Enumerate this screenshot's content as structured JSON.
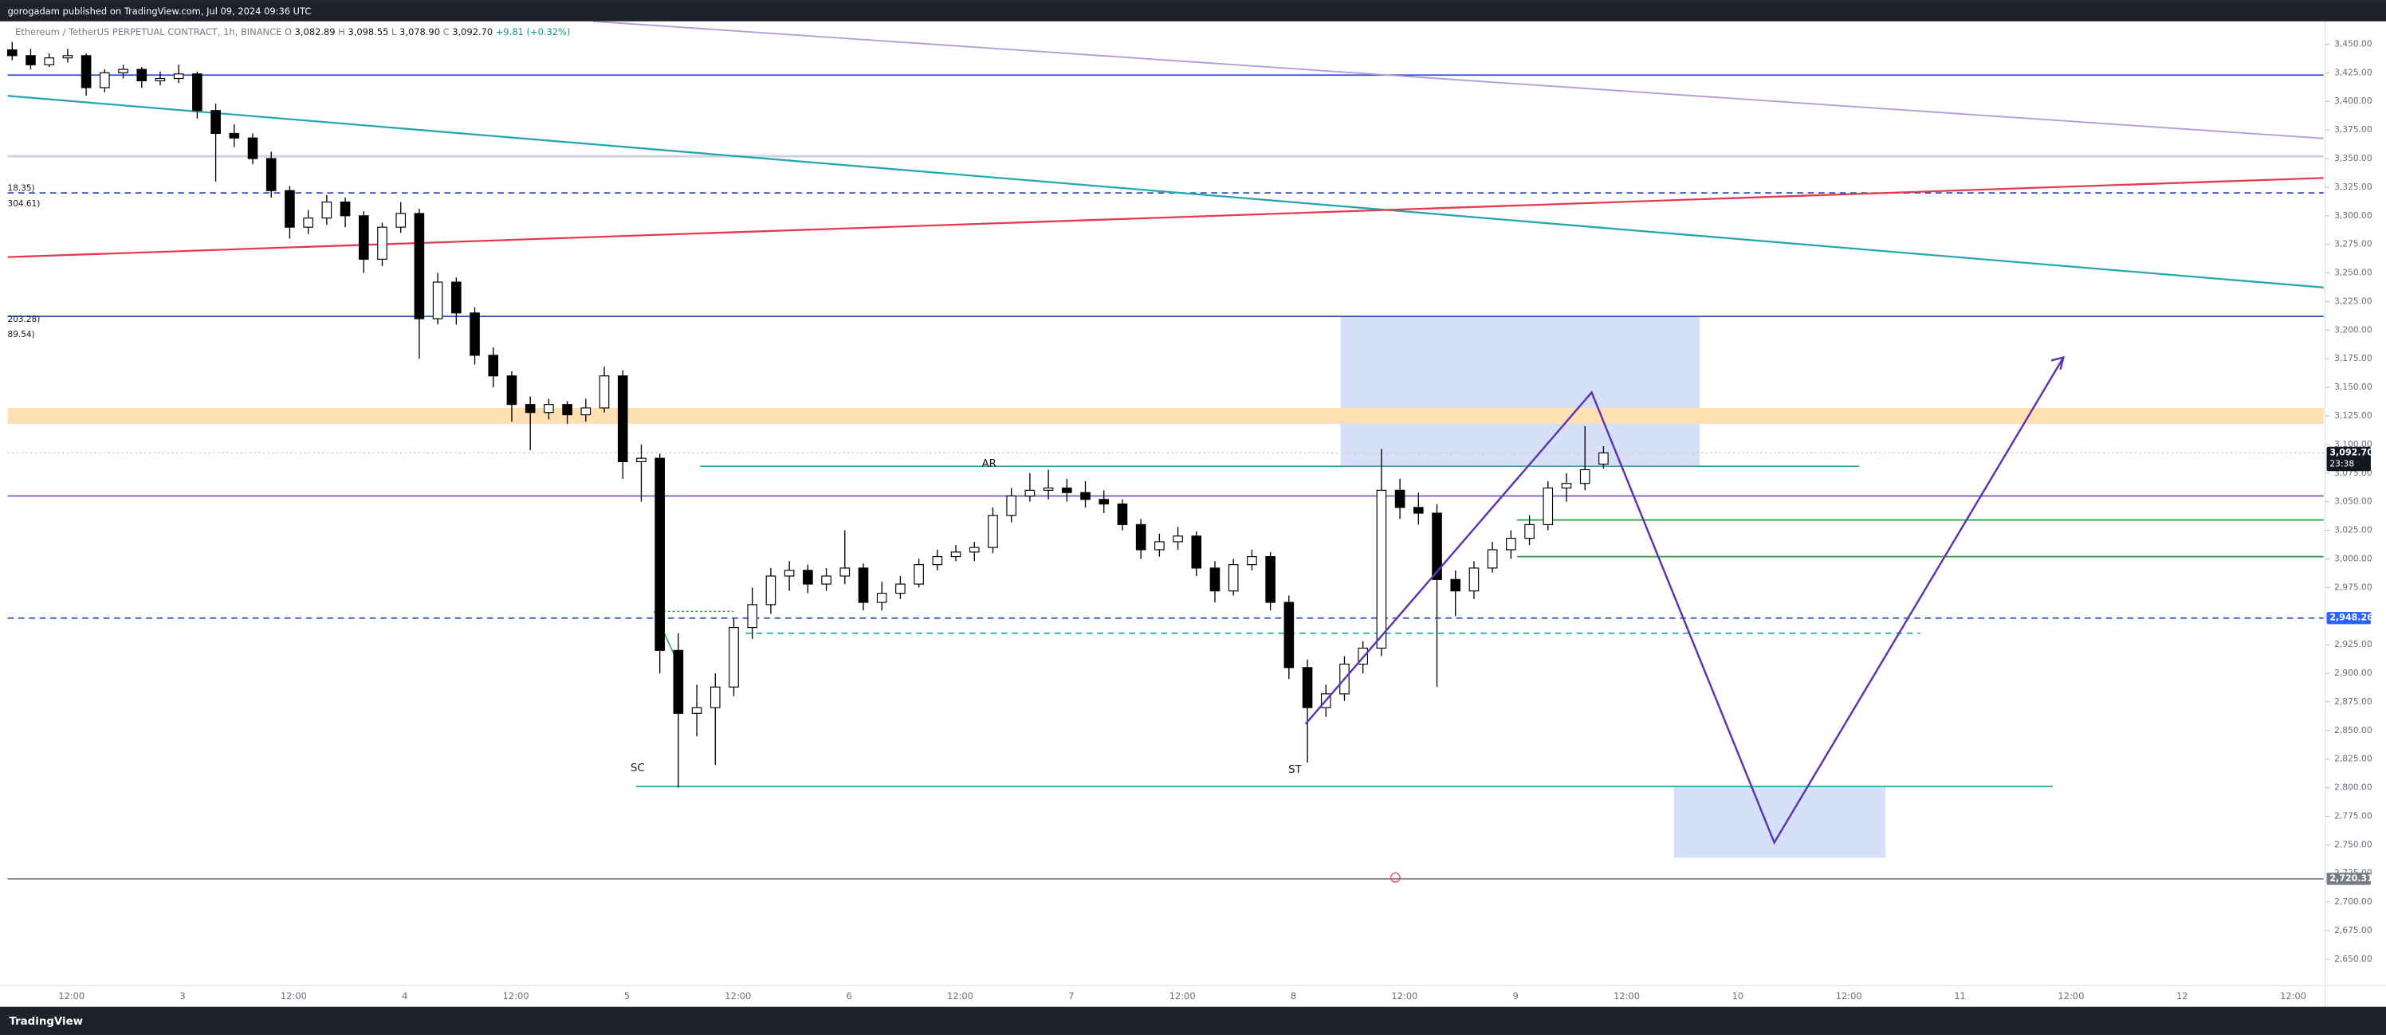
{
  "header": {
    "text": "gorogadam published on TradingView.com, Jul 09, 2024 09:36 UTC"
  },
  "footer": {
    "text": "TradingView"
  },
  "chart_data": {
    "type": "candlestick",
    "symbol": "Ethereum / TetherUS PERPETUAL CONTRACT, 1h, BINANCE",
    "ohlc_legend": [
      {
        "key": "O",
        "value": "3,082.89"
      },
      {
        "key": "H",
        "value": "3,098.55"
      },
      {
        "key": "L",
        "value": "3,078.90"
      },
      {
        "key": "C",
        "value": "3,092.70"
      }
    ],
    "change": "+9.81 (+0.32%)",
    "up_color": "#ffffff",
    "down_color": "#000000",
    "grid": false,
    "ylim": [
      2627,
      3470
    ],
    "yticks": [
      {
        "value": 3450,
        "label": "3,450.00"
      },
      {
        "value": 3425,
        "label": "3,425.00"
      },
      {
        "value": 3400,
        "label": "3,400.00"
      },
      {
        "value": 3375,
        "label": "3,375.00"
      },
      {
        "value": 3350,
        "label": "3,350.00"
      },
      {
        "value": 3325,
        "label": "3,325.00"
      },
      {
        "value": 3300,
        "label": "3,300.00"
      },
      {
        "value": 3275,
        "label": "3,275.00"
      },
      {
        "value": 3250,
        "label": "3,250.00"
      },
      {
        "value": 3225,
        "label": "3,225.00"
      },
      {
        "value": 3200,
        "label": "3,200.00"
      },
      {
        "value": 3175,
        "label": "3,175.00"
      },
      {
        "value": 3150,
        "label": "3,150.00"
      },
      {
        "value": 3125,
        "label": "3,125.00"
      },
      {
        "value": 3100,
        "label": "3,100.00"
      },
      {
        "value": 3075,
        "label": "3,075.00"
      },
      {
        "value": 3050,
        "label": "3,050.00"
      },
      {
        "value": 3025,
        "label": "3,025.00"
      },
      {
        "value": 3000,
        "label": "3,000.00"
      },
      {
        "value": 2975,
        "label": "2,975.00"
      },
      {
        "value": 2950,
        "label": "2,950.00"
      },
      {
        "value": 2925,
        "label": "2,925.00"
      },
      {
        "value": 2900,
        "label": "2,900.00"
      },
      {
        "value": 2875,
        "label": "2,875.00"
      },
      {
        "value": 2850,
        "label": "2,850.00"
      },
      {
        "value": 2825,
        "label": "2,825.00"
      },
      {
        "value": 2800,
        "label": "2,800.00"
      },
      {
        "value": 2775,
        "label": "2,775.00"
      },
      {
        "value": 2750,
        "label": "2,750.00"
      },
      {
        "value": 2725,
        "label": "2,725.00"
      },
      {
        "value": 2700,
        "label": "2,700.00"
      },
      {
        "value": 2675,
        "label": "2,675.00"
      },
      {
        "value": 2650,
        "label": "2,650.00"
      }
    ],
    "x_axis_labels": [
      "12:00",
      "3",
      "12:00",
      "4",
      "12:00",
      "5",
      "12:00",
      "6",
      "12:00",
      "7",
      "12:00",
      "8",
      "12:00",
      "9",
      "12:00",
      "10",
      "12:00",
      "11",
      "12:00",
      "12",
      "12:00"
    ],
    "ohlc": [
      [
        3445,
        3452,
        3436,
        3440
      ],
      [
        3440,
        3446,
        3428,
        3432
      ],
      [
        3432,
        3442,
        3430,
        3438
      ],
      [
        3438,
        3446,
        3434,
        3440
      ],
      [
        3440,
        3442,
        3405,
        3412
      ],
      [
        3412,
        3428,
        3408,
        3425
      ],
      [
        3425,
        3432,
        3420,
        3428
      ],
      [
        3428,
        3430,
        3412,
        3418
      ],
      [
        3418,
        3426,
        3414,
        3420
      ],
      [
        3420,
        3432,
        3416,
        3424
      ],
      [
        3424,
        3426,
        3385,
        3392
      ],
      [
        3392,
        3398,
        3330,
        3372
      ],
      [
        3372,
        3380,
        3360,
        3368
      ],
      [
        3368,
        3372,
        3345,
        3350
      ],
      [
        3350,
        3356,
        3316,
        3322
      ],
      [
        3322,
        3326,
        3280,
        3290
      ],
      [
        3290,
        3305,
        3284,
        3298
      ],
      [
        3298,
        3318,
        3292,
        3312
      ],
      [
        3312,
        3316,
        3290,
        3300
      ],
      [
        3300,
        3304,
        3250,
        3262
      ],
      [
        3262,
        3294,
        3256,
        3290
      ],
      [
        3290,
        3312,
        3285,
        3302
      ],
      [
        3302,
        3306,
        3175,
        3210
      ],
      [
        3210,
        3250,
        3205,
        3242
      ],
      [
        3242,
        3246,
        3205,
        3215
      ],
      [
        3215,
        3220,
        3170,
        3178
      ],
      [
        3178,
        3185,
        3150,
        3160
      ],
      [
        3160,
        3164,
        3120,
        3135
      ],
      [
        3135,
        3142,
        3095,
        3128
      ],
      [
        3128,
        3140,
        3122,
        3135
      ],
      [
        3135,
        3138,
        3118,
        3126
      ],
      [
        3126,
        3140,
        3120,
        3132
      ],
      [
        3132,
        3168,
        3128,
        3160
      ],
      [
        3160,
        3165,
        3070,
        3085
      ],
      [
        3085,
        3100,
        3050,
        3088
      ],
      [
        3088,
        3092,
        2900,
        2920
      ],
      [
        2920,
        2935,
        2800,
        2865
      ],
      [
        2865,
        2890,
        2845,
        2870
      ],
      [
        2870,
        2900,
        2820,
        2888
      ],
      [
        2888,
        2948,
        2880,
        2940
      ],
      [
        2940,
        2975,
        2930,
        2960
      ],
      [
        2960,
        2992,
        2952,
        2985
      ],
      [
        2985,
        2998,
        2972,
        2990
      ],
      [
        2990,
        2995,
        2970,
        2978
      ],
      [
        2978,
        2992,
        2972,
        2985
      ],
      [
        2985,
        3025,
        2978,
        2992
      ],
      [
        2992,
        2996,
        2955,
        2962
      ],
      [
        2962,
        2980,
        2955,
        2970
      ],
      [
        2970,
        2985,
        2965,
        2978
      ],
      [
        2978,
        3000,
        2975,
        2995
      ],
      [
        2995,
        3008,
        2990,
        3002
      ],
      [
        3002,
        3012,
        2998,
        3006
      ],
      [
        3006,
        3015,
        2998,
        3010
      ],
      [
        3010,
        3045,
        3005,
        3038
      ],
      [
        3038,
        3062,
        3032,
        3055
      ],
      [
        3055,
        3075,
        3050,
        3060
      ],
      [
        3060,
        3078,
        3052,
        3062
      ],
      [
        3062,
        3070,
        3050,
        3058
      ],
      [
        3058,
        3068,
        3045,
        3052
      ],
      [
        3052,
        3060,
        3040,
        3048
      ],
      [
        3048,
        3052,
        3025,
        3030
      ],
      [
        3030,
        3035,
        3000,
        3008
      ],
      [
        3008,
        3022,
        3002,
        3015
      ],
      [
        3015,
        3028,
        3008,
        3020
      ],
      [
        3020,
        3024,
        2985,
        2992
      ],
      [
        2992,
        2998,
        2962,
        2972
      ],
      [
        2972,
        3000,
        2968,
        2995
      ],
      [
        2995,
        3008,
        2990,
        3002
      ],
      [
        3002,
        3006,
        2955,
        2962
      ],
      [
        2962,
        2968,
        2895,
        2905
      ],
      [
        2905,
        2912,
        2822,
        2870
      ],
      [
        2870,
        2890,
        2862,
        2882
      ],
      [
        2882,
        2915,
        2876,
        2908
      ],
      [
        2908,
        2928,
        2900,
        2922
      ],
      [
        2922,
        3096,
        2915,
        3060
      ],
      [
        3060,
        3070,
        3035,
        3045
      ],
      [
        3045,
        3058,
        3030,
        3040
      ],
      [
        3040,
        3048,
        2888,
        2982
      ],
      [
        2982,
        2990,
        2950,
        2972
      ],
      [
        2972,
        2998,
        2965,
        2992
      ],
      [
        2992,
        3015,
        2988,
        3008
      ],
      [
        3008,
        3025,
        3000,
        3018
      ],
      [
        3018,
        3038,
        3012,
        3030
      ],
      [
        3030,
        3068,
        3025,
        3062
      ],
      [
        3062,
        3075,
        3050,
        3066
      ],
      [
        3066,
        3116,
        3060,
        3078
      ],
      [
        3082.89,
        3098.55,
        3078.9,
        3092.7
      ]
    ],
    "band": {
      "from": 3118,
      "to": 3132,
      "color": "#ffe0b2"
    },
    "levels": [
      {
        "value": 3423,
        "color": "#2a4fbf",
        "style": "solid"
      },
      {
        "value": 3352,
        "color": "#d1d4dc",
        "style": "solid"
      },
      {
        "value": 3320,
        "color": "#2a4fbf",
        "style": "dashed"
      },
      {
        "value": 3212,
        "color": "#2a4fbf",
        "style": "solid"
      },
      {
        "value": 3055,
        "color": "#7e57c2",
        "style": "solid"
      },
      {
        "value": 3081,
        "color": "#26a6b0",
        "style": "solid"
      },
      {
        "value": 3034,
        "color": "#2e9e3e",
        "style": "solid"
      },
      {
        "value": 3002,
        "color": "#2e9e3e",
        "style": "solid"
      },
      {
        "value": 2935,
        "color": "#26a6b0",
        "style": "dashed"
      },
      {
        "value": 2801,
        "color": "#26a6b0",
        "style": "solid"
      }
    ],
    "price_labels": [
      {
        "value": 3092.7,
        "label": "3,092.70",
        "sub": "23:38",
        "color": "#131722",
        "line": "#d6cfa8",
        "style": "dotted"
      },
      {
        "value": 2948.26,
        "label": "2,948.26",
        "color": "#2962ff",
        "line": "#2a4fbf",
        "style": "dashed"
      },
      {
        "value": 2720.31,
        "label": "2,720.31",
        "color": "#787b86",
        "line": "#787b86",
        "style": "solid"
      }
    ],
    "annotations": [
      "SC",
      "AR",
      "ST"
    ],
    "left_labels": [
      "18.35)",
      "304.61)",
      "203.28)",
      "89.54)"
    ]
  }
}
